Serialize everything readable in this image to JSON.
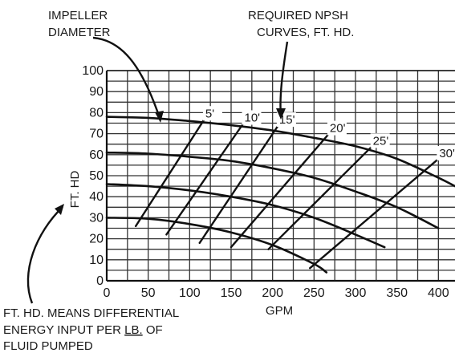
{
  "chart_data": {
    "type": "line",
    "xlabel": "GPM",
    "ylabel": "FT. HD",
    "xlim": [
      0,
      420
    ],
    "ylim": [
      0,
      100
    ],
    "grid": true,
    "x_ticks": [
      "0",
      "50",
      "100",
      "150",
      "200",
      "250",
      "300",
      "350",
      "400"
    ],
    "y_ticks": [
      "0",
      "10",
      "20",
      "30",
      "40",
      "50",
      "60",
      "70",
      "80",
      "90",
      "100"
    ],
    "annotations": {
      "impeller": [
        "IMPELLER",
        "DIAMETER"
      ],
      "npsh": [
        "REQUIRED NPSH",
        "CURVES, FT. HD."
      ],
      "footnote_line1": "FT. HD. MEANS DIFFERENTIAL",
      "footnote_line2_a": "ENERGY INPUT PER ",
      "footnote_line2_b": "LB.",
      "footnote_line2_c": " OF",
      "footnote_line3": "FLUID PUMPED"
    },
    "series": [
      {
        "x": [
          0,
          50,
          100,
          150,
          200,
          250,
          300,
          350,
          400,
          420
        ],
        "y": [
          78,
          77.5,
          76,
          74,
          71.5,
          68,
          64,
          58,
          49,
          45
        ]
      },
      {
        "x": [
          0,
          50,
          100,
          150,
          200,
          250,
          300,
          350,
          400
        ],
        "y": [
          61,
          60.5,
          59,
          57,
          53.5,
          49,
          42.5,
          35,
          25
        ]
      },
      {
        "x": [
          0,
          50,
          100,
          150,
          200,
          250,
          300,
          335
        ],
        "y": [
          46,
          45,
          43,
          40,
          36,
          30,
          22,
          16
        ]
      },
      {
        "x": [
          0,
          50,
          100,
          150,
          200,
          250,
          265
        ],
        "y": [
          30,
          29.5,
          27,
          23,
          17,
          8,
          4
        ]
      }
    ],
    "npsh_curves": [
      {
        "label": "5'",
        "x": [
          35,
          118
        ],
        "y": [
          26,
          77
        ]
      },
      {
        "label": "10'",
        "x": [
          72,
          165
        ],
        "y": [
          22,
          75
        ]
      },
      {
        "label": "15'",
        "x": [
          112,
          207
        ],
        "y": [
          18,
          74
        ]
      },
      {
        "label": "20'",
        "x": [
          150,
          268
        ],
        "y": [
          16,
          70
        ]
      },
      {
        "label": "25'",
        "x": [
          195,
          320
        ],
        "y": [
          15,
          64
        ]
      },
      {
        "label": "30'",
        "x": [
          245,
          400
        ],
        "y": [
          6,
          58
        ]
      }
    ]
  }
}
